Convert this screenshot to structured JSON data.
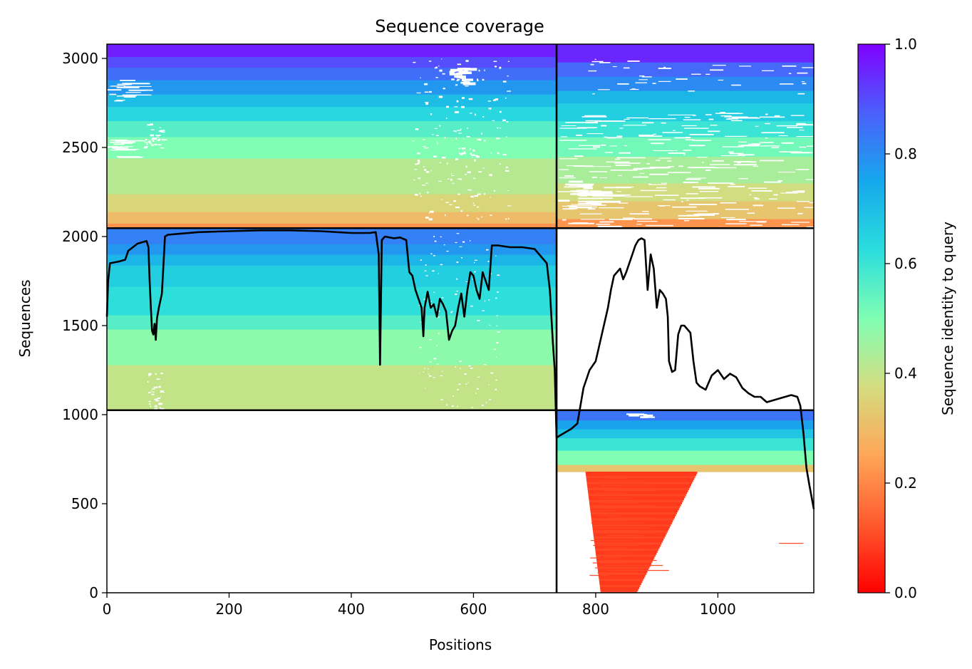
{
  "chart_data": {
    "type": "heatmap",
    "title": "Sequence coverage",
    "xlabel": "Positions",
    "ylabel": "Sequences",
    "xlim": [
      0,
      1157
    ],
    "ylim": [
      0,
      3080
    ],
    "x_ticks": [
      0,
      200,
      400,
      600,
      800,
      1000
    ],
    "y_ticks": [
      0,
      500,
      1000,
      1500,
      2000,
      2500,
      3000
    ],
    "colorbar": {
      "label": "Sequence identity to query",
      "range": [
        0,
        1
      ],
      "ticks": [
        "0.0",
        "0.2",
        "0.4",
        "0.6",
        "0.8",
        "1.0"
      ],
      "colormap": "rainbow_r"
    },
    "chain_boundaries": {
      "x": 736,
      "y": [
        1025,
        2047
      ]
    },
    "blocks": [
      {
        "x_range": [
          0,
          736
        ],
        "y_range": [
          2047,
          3080
        ],
        "identity_bands": [
          [
            2047,
            2075,
            0.22
          ],
          [
            2075,
            2140,
            0.3
          ],
          [
            2140,
            2240,
            0.36
          ],
          [
            2240,
            2440,
            0.42
          ],
          [
            2440,
            2560,
            0.5
          ],
          [
            2560,
            2650,
            0.56
          ],
          [
            2650,
            2730,
            0.64
          ],
          [
            2730,
            2800,
            0.7
          ],
          [
            2800,
            2880,
            0.78
          ],
          [
            2880,
            2950,
            0.85
          ],
          [
            2950,
            3010,
            0.9
          ],
          [
            3010,
            3080,
            0.96
          ]
        ]
      },
      {
        "x_range": [
          0,
          736
        ],
        "y_range": [
          1025,
          2047
        ],
        "identity_bands": [
          [
            1025,
            1280,
            0.4
          ],
          [
            1280,
            1480,
            0.48
          ],
          [
            1480,
            1560,
            0.56
          ],
          [
            1560,
            1720,
            0.62
          ],
          [
            1720,
            1840,
            0.66
          ],
          [
            1840,
            1900,
            0.72
          ],
          [
            1900,
            1960,
            0.78
          ],
          [
            1960,
            2047,
            0.82
          ]
        ]
      },
      {
        "x_range": [
          736,
          1157
        ],
        "y_range": [
          2047,
          3080
        ],
        "identity_bands": [
          [
            2047,
            2100,
            0.22
          ],
          [
            2100,
            2200,
            0.32
          ],
          [
            2200,
            2300,
            0.38
          ],
          [
            2300,
            2450,
            0.44
          ],
          [
            2450,
            2560,
            0.52
          ],
          [
            2560,
            2650,
            0.6
          ],
          [
            2650,
            2750,
            0.66
          ],
          [
            2750,
            2820,
            0.72
          ],
          [
            2820,
            2900,
            0.8
          ],
          [
            2900,
            2980,
            0.86
          ],
          [
            2980,
            3080,
            0.95
          ]
        ]
      },
      {
        "x_range": [
          736,
          1157
        ],
        "y_range": [
          680,
          1025
        ],
        "identity_bands": [
          [
            680,
            720,
            0.32
          ],
          [
            720,
            800,
            0.5
          ],
          [
            800,
            870,
            0.6
          ],
          [
            870,
            920,
            0.68
          ],
          [
            920,
            970,
            0.76
          ],
          [
            970,
            1025,
            0.84
          ]
        ]
      },
      {
        "x_range": [
          736,
          1157
        ],
        "y_range": [
          0,
          680
        ],
        "identity": 0.08,
        "note_shape": "funnel"
      }
    ],
    "coverage_line": {
      "x": [
        0,
        2,
        5,
        20,
        30,
        35,
        50,
        65,
        68,
        70,
        72,
        74,
        76,
        78,
        80,
        82,
        85,
        90,
        95,
        100,
        150,
        200,
        250,
        300,
        350,
        400,
        430,
        440,
        445,
        447,
        450,
        455,
        470,
        480,
        490,
        495,
        500,
        505,
        510,
        515,
        518,
        520,
        525,
        530,
        535,
        540,
        545,
        550,
        555,
        560,
        565,
        570,
        575,
        580,
        585,
        590,
        595,
        600,
        605,
        610,
        615,
        620,
        625,
        630,
        640,
        660,
        680,
        700,
        720,
        725,
        730,
        733,
        736,
        740,
        750,
        760,
        770,
        775,
        780,
        790,
        800,
        810,
        820,
        825,
        830,
        835,
        840,
        845,
        850,
        855,
        860,
        865,
        870,
        875,
        880,
        885,
        890,
        895,
        900,
        905,
        910,
        915,
        918,
        920,
        925,
        930,
        935,
        940,
        945,
        950,
        955,
        960,
        965,
        970,
        980,
        990,
        1000,
        1010,
        1020,
        1030,
        1040,
        1050,
        1060,
        1070,
        1080,
        1090,
        1100,
        1110,
        1120,
        1130,
        1135,
        1140,
        1145,
        1150,
        1157
      ],
      "y": [
        1550,
        1750,
        1850,
        1860,
        1870,
        1920,
        1960,
        1975,
        1940,
        1750,
        1600,
        1470,
        1450,
        1510,
        1420,
        1540,
        1600,
        1680,
        2000,
        2010,
        2025,
        2030,
        2035,
        2035,
        2030,
        2020,
        2020,
        2025,
        1900,
        1280,
        1980,
        2000,
        1990,
        1995,
        1980,
        1800,
        1780,
        1700,
        1650,
        1600,
        1440,
        1600,
        1690,
        1600,
        1620,
        1550,
        1650,
        1620,
        1580,
        1420,
        1470,
        1500,
        1600,
        1680,
        1550,
        1700,
        1800,
        1780,
        1700,
        1650,
        1800,
        1750,
        1700,
        1950,
        1950,
        1940,
        1940,
        1930,
        1850,
        1700,
        1400,
        1250,
        870,
        880,
        900,
        920,
        950,
        1050,
        1150,
        1250,
        1300,
        1450,
        1600,
        1700,
        1780,
        1800,
        1820,
        1760,
        1800,
        1850,
        1900,
        1950,
        1980,
        1990,
        1980,
        1700,
        1900,
        1820,
        1600,
        1700,
        1680,
        1650,
        1550,
        1300,
        1240,
        1250,
        1450,
        1500,
        1500,
        1480,
        1460,
        1300,
        1180,
        1160,
        1140,
        1220,
        1250,
        1200,
        1230,
        1210,
        1150,
        1120,
        1100,
        1100,
        1070,
        1080,
        1090,
        1100,
        1110,
        1100,
        1050,
        900,
        700,
        600,
        470
      ]
    }
  }
}
